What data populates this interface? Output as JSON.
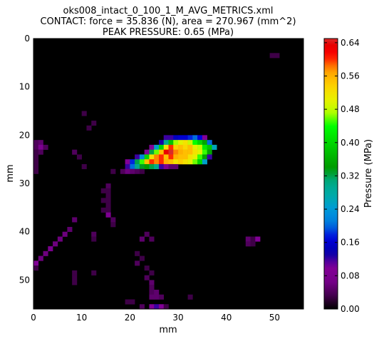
{
  "chart_data": {
    "type": "heatmap",
    "title_lines": [
      "oks008_intact_0_100_1_M_AVG_METRICS.xml",
      "CONTACT: force = 35.836 (N), area = 270.967 (mm^2)",
      "PEAK PRESSURE: 0.65 (MPa)"
    ],
    "xlabel": "mm",
    "ylabel": "mm",
    "xlim": [
      0,
      56
    ],
    "ylim": [
      56,
      0
    ],
    "xticks": [
      "0",
      "10",
      "20",
      "30",
      "40",
      "50"
    ],
    "yticks": [
      "0",
      "10",
      "20",
      "30",
      "40",
      "50"
    ],
    "colorbar": {
      "label": "Pressure (MPa)",
      "range": [
        0.0,
        0.65
      ],
      "ticks": [
        "0.00",
        "0.08",
        "0.16",
        "0.24",
        "0.32",
        "0.40",
        "0.48",
        "0.56",
        "0.64"
      ],
      "colormap": "nipy_spectral"
    },
    "cells_format": "row, col, pressure (MPa)",
    "cells": [
      [
        20,
        27,
        0.12
      ],
      [
        20,
        28,
        0.12
      ],
      [
        20,
        29,
        0.15
      ],
      [
        20,
        30,
        0.16
      ],
      [
        20,
        31,
        0.16
      ],
      [
        20,
        32,
        0.18
      ],
      [
        20,
        33,
        0.2
      ],
      [
        20,
        34,
        0.17
      ],
      [
        20,
        35,
        0.1
      ],
      [
        21,
        26,
        0.13
      ],
      [
        21,
        27,
        0.3
      ],
      [
        21,
        28,
        0.38
      ],
      [
        21,
        29,
        0.47
      ],
      [
        21,
        30,
        0.5
      ],
      [
        21,
        31,
        0.52
      ],
      [
        21,
        32,
        0.48
      ],
      [
        21,
        33,
        0.44
      ],
      [
        21,
        34,
        0.4
      ],
      [
        21,
        35,
        0.35
      ],
      [
        21,
        36,
        0.2
      ],
      [
        22,
        24,
        0.1
      ],
      [
        22,
        25,
        0.25
      ],
      [
        22,
        26,
        0.4
      ],
      [
        22,
        27,
        0.52
      ],
      [
        22,
        28,
        0.6
      ],
      [
        22,
        29,
        0.54
      ],
      [
        22,
        30,
        0.55
      ],
      [
        22,
        31,
        0.53
      ],
      [
        22,
        32,
        0.55
      ],
      [
        22,
        33,
        0.5
      ],
      [
        22,
        34,
        0.48
      ],
      [
        22,
        35,
        0.42
      ],
      [
        22,
        36,
        0.38
      ],
      [
        22,
        37,
        0.26
      ],
      [
        23,
        23,
        0.1
      ],
      [
        23,
        24,
        0.32
      ],
      [
        23,
        25,
        0.46
      ],
      [
        23,
        26,
        0.55
      ],
      [
        23,
        27,
        0.63
      ],
      [
        23,
        28,
        0.65
      ],
      [
        23,
        29,
        0.58
      ],
      [
        23,
        30,
        0.56
      ],
      [
        23,
        31,
        0.55
      ],
      [
        23,
        32,
        0.55
      ],
      [
        23,
        33,
        0.52
      ],
      [
        23,
        34,
        0.5
      ],
      [
        23,
        35,
        0.45
      ],
      [
        23,
        36,
        0.35
      ],
      [
        24,
        21,
        0.12
      ],
      [
        24,
        22,
        0.22
      ],
      [
        24,
        23,
        0.4
      ],
      [
        24,
        24,
        0.52
      ],
      [
        24,
        25,
        0.58
      ],
      [
        24,
        26,
        0.6
      ],
      [
        24,
        27,
        0.55
      ],
      [
        24,
        28,
        0.6
      ],
      [
        24,
        29,
        0.56
      ],
      [
        24,
        30,
        0.55
      ],
      [
        24,
        31,
        0.55
      ],
      [
        24,
        32,
        0.52
      ],
      [
        24,
        33,
        0.5
      ],
      [
        24,
        34,
        0.45
      ],
      [
        24,
        35,
        0.35
      ],
      [
        24,
        36,
        0.12
      ],
      [
        25,
        19,
        0.1
      ],
      [
        25,
        20,
        0.18
      ],
      [
        25,
        21,
        0.32
      ],
      [
        25,
        22,
        0.45
      ],
      [
        25,
        23,
        0.55
      ],
      [
        25,
        24,
        0.6
      ],
      [
        25,
        25,
        0.58
      ],
      [
        25,
        26,
        0.6
      ],
      [
        25,
        27,
        0.56
      ],
      [
        25,
        28,
        0.55
      ],
      [
        25,
        29,
        0.52
      ],
      [
        25,
        30,
        0.54
      ],
      [
        25,
        31,
        0.52
      ],
      [
        25,
        32,
        0.5
      ],
      [
        25,
        33,
        0.46
      ],
      [
        25,
        34,
        0.4
      ],
      [
        25,
        35,
        0.25
      ],
      [
        26,
        19,
        0.12
      ],
      [
        26,
        20,
        0.2
      ],
      [
        26,
        21,
        0.3
      ],
      [
        26,
        22,
        0.33
      ],
      [
        26,
        23,
        0.34
      ],
      [
        26,
        24,
        0.32
      ],
      [
        26,
        25,
        0.3
      ],
      [
        26,
        26,
        0.12
      ],
      [
        26,
        27,
        0.08
      ],
      [
        26,
        28,
        0.05
      ],
      [
        26,
        29,
        0.05
      ],
      [
        27,
        18,
        0.04
      ],
      [
        27,
        19,
        0.06
      ],
      [
        27,
        20,
        0.05
      ],
      [
        27,
        21,
        0.04
      ],
      [
        27,
        22,
        0.03
      ],
      [
        21,
        0,
        0.04
      ],
      [
        21,
        1,
        0.05
      ],
      [
        22,
        0,
        0.04
      ],
      [
        22,
        1,
        0.08
      ],
      [
        22,
        2,
        0.04
      ],
      [
        23,
        0,
        0.03
      ],
      [
        23,
        1,
        0.04
      ],
      [
        24,
        0,
        0.03
      ],
      [
        25,
        0,
        0.03
      ],
      [
        26,
        0,
        0.03
      ],
      [
        27,
        0,
        0.03
      ],
      [
        23,
        8,
        0.04
      ],
      [
        24,
        9,
        0.03
      ],
      [
        26,
        10,
        0.03
      ],
      [
        27,
        16,
        0.03
      ],
      [
        15,
        10,
        0.03
      ],
      [
        17,
        12,
        0.03
      ],
      [
        18,
        11,
        0.03
      ],
      [
        3,
        49,
        0.03
      ],
      [
        3,
        50,
        0.03
      ],
      [
        30,
        15,
        0.04
      ],
      [
        31,
        15,
        0.03
      ],
      [
        32,
        15,
        0.03
      ],
      [
        33,
        15,
        0.03
      ],
      [
        34,
        15,
        0.03
      ],
      [
        35,
        15,
        0.03
      ],
      [
        36,
        15,
        0.09
      ],
      [
        37,
        16,
        0.04
      ],
      [
        38,
        16,
        0.03
      ],
      [
        31,
        14,
        0.03
      ],
      [
        33,
        14,
        0.03
      ],
      [
        35,
        14,
        0.03
      ],
      [
        37,
        8,
        0.05
      ],
      [
        39,
        7,
        0.05
      ],
      [
        40,
        6,
        0.06
      ],
      [
        41,
        5,
        0.06
      ],
      [
        42,
        4,
        0.06
      ],
      [
        43,
        3,
        0.07
      ],
      [
        44,
        2,
        0.06
      ],
      [
        45,
        1,
        0.06
      ],
      [
        46,
        0,
        0.1
      ],
      [
        47,
        0,
        0.03
      ],
      [
        40,
        12,
        0.04
      ],
      [
        41,
        12,
        0.03
      ],
      [
        40,
        23,
        0.04
      ],
      [
        41,
        22,
        0.05
      ],
      [
        41,
        24,
        0.04
      ],
      [
        44,
        21,
        0.03
      ],
      [
        45,
        22,
        0.03
      ],
      [
        46,
        21,
        0.04
      ],
      [
        47,
        23,
        0.03
      ],
      [
        48,
        24,
        0.03
      ],
      [
        49,
        23,
        0.04
      ],
      [
        50,
        24,
        0.05
      ],
      [
        51,
        24,
        0.04
      ],
      [
        52,
        24,
        0.04
      ],
      [
        48,
        8,
        0.03
      ],
      [
        49,
        8,
        0.03
      ],
      [
        50,
        8,
        0.03
      ],
      [
        48,
        12,
        0.03
      ],
      [
        52,
        25,
        0.05
      ],
      [
        53,
        24,
        0.05
      ],
      [
        53,
        25,
        0.05
      ],
      [
        53,
        26,
        0.04
      ],
      [
        54,
        19,
        0.03
      ],
      [
        54,
        20,
        0.03
      ],
      [
        55,
        22,
        0.04
      ],
      [
        55,
        24,
        0.1
      ],
      [
        55,
        25,
        0.12
      ],
      [
        55,
        26,
        0.1
      ],
      [
        55,
        27,
        0.03
      ],
      [
        41,
        44,
        0.05
      ],
      [
        41,
        45,
        0.03
      ],
      [
        41,
        46,
        0.1
      ],
      [
        42,
        44,
        0.04
      ],
      [
        42,
        45,
        0.03
      ],
      [
        53,
        32,
        0.03
      ]
    ]
  }
}
